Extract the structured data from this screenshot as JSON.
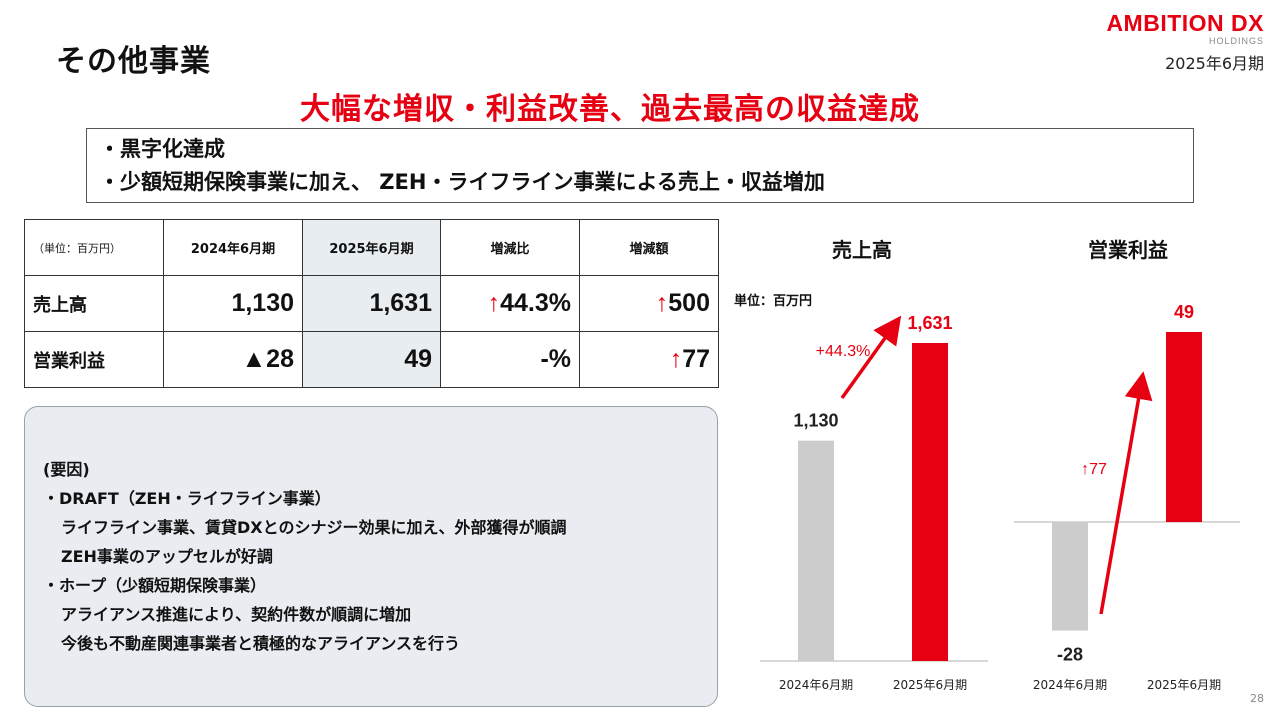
{
  "header": {
    "title": "その他事業",
    "logo_main": "AMBITION DX",
    "logo_sub": "HOLDINGS",
    "period": "2025年6月期"
  },
  "headline": "大幅な増収・利益改善、過去最高の収益達成",
  "summary": [
    "・黒字化達成",
    "・少額短期保険事業に加え、 ZEH・ライフライン事業による売上・収益増加"
  ],
  "table": {
    "unit": "（単位：百万円）",
    "headers": [
      "2024年6月期",
      "2025年6月期",
      "増減比",
      "増減額"
    ],
    "rows": [
      {
        "label": "売上高",
        "v2024": "1,130",
        "v2025": "1,631",
        "ratio_arrow": "↑",
        "ratio": "44.3%",
        "diff_arrow": "↑",
        "diff": "500"
      },
      {
        "label": "営業利益",
        "v2024": "▲28",
        "v2025": "49",
        "ratio_arrow": "",
        "ratio": "-%",
        "diff_arrow": "↑",
        "diff": "77"
      }
    ]
  },
  "factors": {
    "heading": "(要因)",
    "lines": [
      "・DRAFT（ZEH・ライフライン事業）",
      "ライフライン事業、賃貸DXとのシナジー効果に加え、外部獲得が順調",
      "ZEH事業のアップセルが好調",
      "・ホープ（少額短期保険事業）",
      "アライアンス推進により、契約件数が順調に増加",
      "今後も不動産関連事業者と積極的なアライアンスを行う"
    ]
  },
  "chart_data": [
    {
      "type": "bar",
      "title": "売上高",
      "unit": "単位：百万円",
      "categories": [
        "2024年6月期",
        "2025年6月期"
      ],
      "values": [
        1130,
        1631
      ],
      "value_labels": [
        "1,130",
        "1,631"
      ],
      "annotation": "+44.3%",
      "colors": [
        "#cccccc",
        "#e60012"
      ],
      "ylim": [
        0,
        1800
      ]
    },
    {
      "type": "bar",
      "title": "営業利益",
      "categories": [
        "2024年6月期",
        "2025年6月期"
      ],
      "values": [
        -28,
        49
      ],
      "value_labels": [
        "-28",
        "49"
      ],
      "annotation": "↑77",
      "colors": [
        "#cccccc",
        "#e60012"
      ],
      "ylim": [
        -32,
        58
      ]
    }
  ],
  "page_number": "28",
  "colors": {
    "accent": "#e60012",
    "bar_prev": "#cccccc",
    "shade": "#e8edf2"
  }
}
